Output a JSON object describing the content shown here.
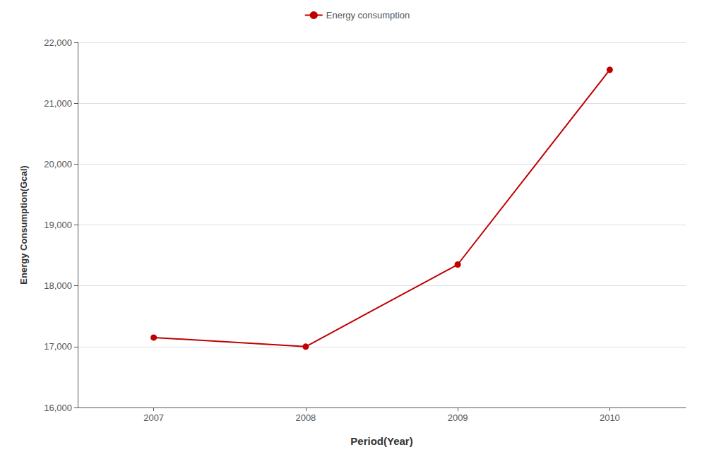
{
  "chart_data": {
    "type": "line",
    "x": [
      2007,
      2008,
      2009,
      2010
    ],
    "series": [
      {
        "name": "Energy consumption",
        "color": "#C00000",
        "marker": "circle",
        "values": [
          17150,
          17000,
          18350,
          21550
        ]
      }
    ],
    "xlabel": "Period(Year)",
    "ylabel": "Energy Consumption(Gcal)",
    "xlim": [
      2006.5,
      2010.5
    ],
    "xticks": [
      2007,
      2008,
      2009,
      2010
    ],
    "ylim": [
      16000,
      22000
    ],
    "yticks": [
      {
        "value": 16000,
        "label": "16,000"
      },
      {
        "value": 17000,
        "label": "17,000"
      },
      {
        "value": 18000,
        "label": "18,000"
      },
      {
        "value": 19000,
        "label": "19,000"
      },
      {
        "value": 20000,
        "label": "20,000"
      },
      {
        "value": 21000,
        "label": "21,000"
      },
      {
        "value": 22000,
        "label": "22,000"
      }
    ],
    "grid": true,
    "legend": "top"
  }
}
